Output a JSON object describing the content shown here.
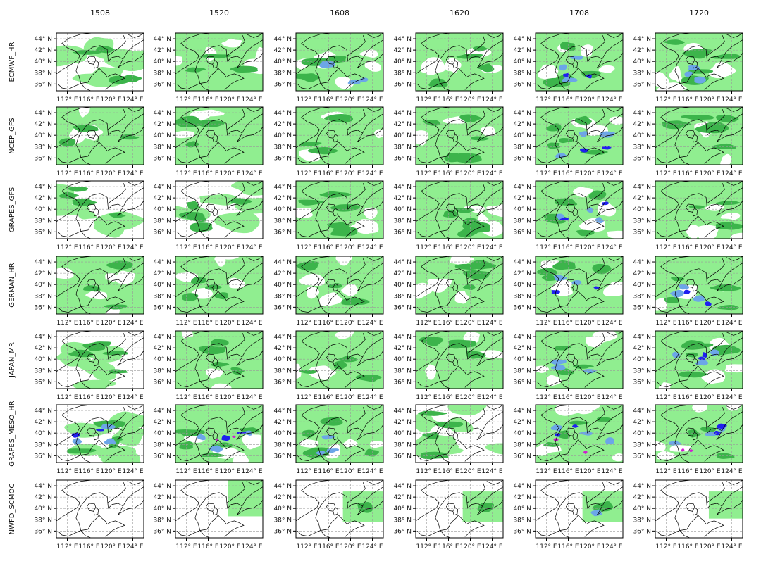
{
  "chart_data": {
    "type": "heatmap",
    "columns": [
      "1508",
      "1520",
      "1608",
      "1620",
      "1708",
      "1720"
    ],
    "rows": [
      "ECMWF_HR",
      "NCEP_GFS",
      "GRAPES_GFS",
      "GERMAN_HR",
      "JAPAN_MR",
      "GRAPES_MESO_HR",
      "NWFD_SCMOC"
    ],
    "yticks": [
      "44° N",
      "42° N",
      "40° N",
      "38° N",
      "36° N"
    ],
    "xticks": [
      "112° E",
      "116° E",
      "120° E",
      "124° E"
    ],
    "lon_range": [
      110,
      126
    ],
    "lat_range": [
      34.8,
      45
    ],
    "grid": true,
    "colors": {
      "light": "#90ee90",
      "medium": "#3cb44b",
      "heavy": "#6ca6e8",
      "severe": "#1f1ff0",
      "extreme": "#d020d0",
      "border": "#000000",
      "gridline": "#999999"
    },
    "coverage": [
      [
        2,
        3,
        3,
        3,
        3,
        3
      ],
      [
        3,
        3,
        3,
        3,
        3,
        3
      ],
      [
        2,
        2,
        3,
        3,
        3,
        3
      ],
      [
        3,
        3,
        3,
        3,
        3,
        3
      ],
      [
        2,
        3,
        3,
        3,
        3,
        3
      ],
      [
        2,
        3,
        3,
        2,
        3,
        3
      ],
      [
        0,
        1,
        1,
        1,
        1,
        1
      ]
    ],
    "intensity": [
      [
        0,
        0,
        2,
        1,
        3,
        2
      ],
      [
        0,
        1,
        1,
        0,
        3,
        0
      ],
      [
        0,
        0,
        1,
        0,
        3,
        1
      ],
      [
        0,
        0,
        1,
        1,
        3,
        3
      ],
      [
        1,
        1,
        1,
        1,
        2,
        3
      ],
      [
        3,
        4,
        2,
        1,
        4,
        4
      ],
      [
        0,
        0,
        1,
        1,
        2,
        0
      ]
    ]
  }
}
